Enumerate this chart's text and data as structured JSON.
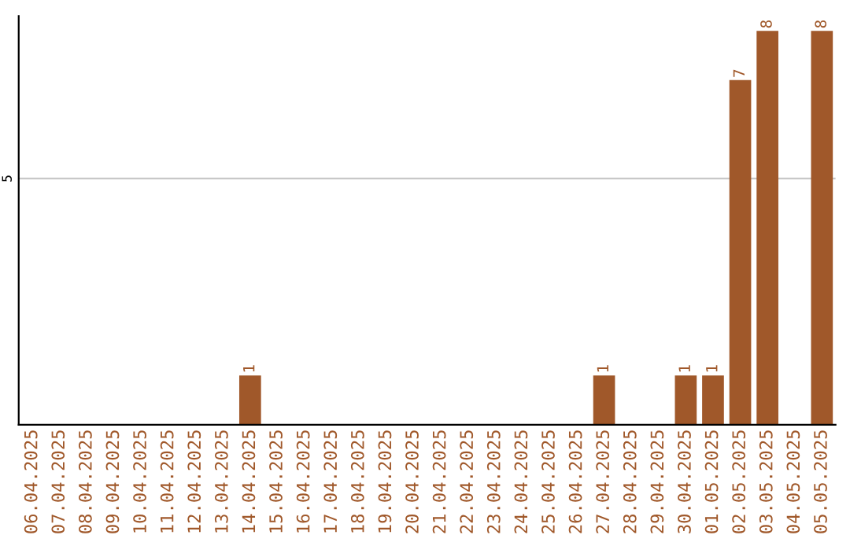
{
  "chart_data": {
    "type": "bar",
    "categories": [
      "06.04.2025",
      "07.04.2025",
      "08.04.2025",
      "09.04.2025",
      "10.04.2025",
      "11.04.2025",
      "12.04.2025",
      "13.04.2025",
      "14.04.2025",
      "15.04.2025",
      "16.04.2025",
      "17.04.2025",
      "18.04.2025",
      "19.04.2025",
      "20.04.2025",
      "21.04.2025",
      "22.04.2025",
      "23.04.2025",
      "24.04.2025",
      "25.04.2025",
      "26.04.2025",
      "27.04.2025",
      "28.04.2025",
      "29.04.2025",
      "30.04.2025",
      "01.05.2025",
      "02.05.2025",
      "03.05.2025",
      "04.05.2025",
      "05.05.2025"
    ],
    "values": [
      0,
      0,
      0,
      0,
      0,
      0,
      0,
      0,
      1,
      0,
      0,
      0,
      0,
      0,
      0,
      0,
      0,
      0,
      0,
      0,
      0,
      1,
      0,
      0,
      1,
      1,
      7,
      8,
      0,
      8
    ],
    "value_labels": [
      null,
      null,
      null,
      null,
      null,
      null,
      null,
      null,
      "1",
      null,
      null,
      null,
      null,
      null,
      null,
      null,
      null,
      null,
      null,
      null,
      null,
      "1",
      null,
      null,
      "1",
      "1",
      "7",
      "8",
      null,
      "8"
    ],
    "color": "#a0582a",
    "ylim": [
      0,
      8.3
    ],
    "yticks": [
      5
    ],
    "grid": "y"
  }
}
